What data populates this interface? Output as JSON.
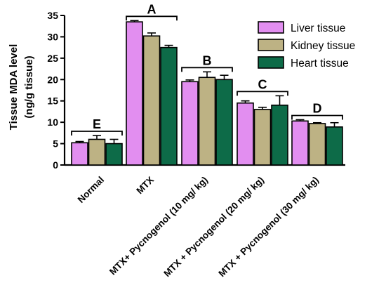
{
  "chart_data": {
    "type": "bar",
    "ylabel_line1": "Tissue MDA level",
    "ylabel_line2": "(ng/g tissue)",
    "ylim": [
      0,
      35
    ],
    "yticks": [
      0,
      5,
      10,
      15,
      20,
      25,
      30,
      35
    ],
    "grid": false,
    "legend_position": "top-right",
    "categories": [
      "Normal",
      "MTX",
      "MTX+ Pycnogenol (10 mg/ kg)",
      "MTX + Pycnogenol (20 mg/ kg)",
      "MTX + Pycnogenol (30 mg/ kg)"
    ],
    "group_letters": [
      "E",
      "A",
      "B",
      "C",
      "D"
    ],
    "series": [
      {
        "name": "Liver tissue",
        "color": "#e28ef0",
        "values": [
          5.2,
          33.5,
          19.5,
          14.5,
          10.3
        ],
        "errors": [
          0.3,
          0.3,
          0.4,
          0.5,
          0.3
        ]
      },
      {
        "name": "Kidney tissue",
        "color": "#bdb284",
        "values": [
          6.0,
          30.2,
          20.5,
          13.0,
          9.7
        ],
        "errors": [
          0.9,
          0.7,
          1.3,
          0.5,
          0.2
        ]
      },
      {
        "name": "Heart tissue",
        "color": "#0d6b48",
        "values": [
          5.0,
          27.5,
          20.0,
          14.0,
          8.9
        ],
        "errors": [
          1.0,
          0.5,
          1.0,
          2.2,
          1.0
        ]
      }
    ]
  }
}
